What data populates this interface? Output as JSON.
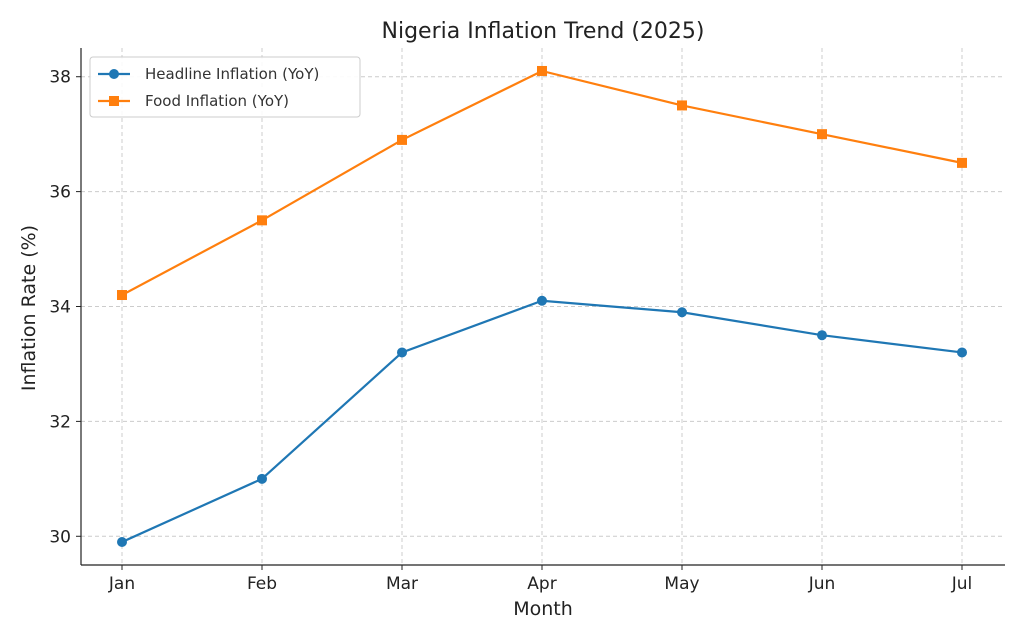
{
  "chart_data": {
    "type": "line",
    "title": "Nigeria Inflation Trend (2025)",
    "xlabel": "Month",
    "ylabel": "Inflation Rate (%)",
    "categories": [
      "Jan",
      "Feb",
      "Mar",
      "Apr",
      "May",
      "Jun",
      "Jul"
    ],
    "ylim": [
      29.5,
      38.5
    ],
    "yticks": [
      30,
      32,
      34,
      36,
      38
    ],
    "grid": true,
    "legend_position": "top-left",
    "series": [
      {
        "name": "Headline Inflation (YoY)",
        "values": [
          29.9,
          31.0,
          33.2,
          34.1,
          33.9,
          33.5,
          33.2
        ],
        "color": "#1f77b4",
        "marker": "circle"
      },
      {
        "name": "Food Inflation (YoY)",
        "values": [
          34.2,
          35.5,
          36.9,
          38.1,
          37.5,
          37.0,
          36.5
        ],
        "color": "#ff7f0e",
        "marker": "square"
      }
    ]
  }
}
